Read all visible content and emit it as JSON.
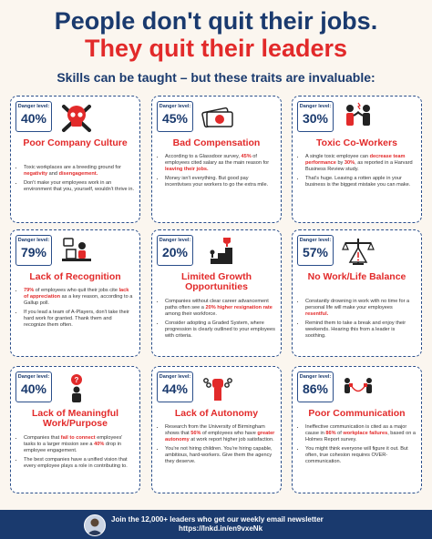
{
  "header": {
    "title_line1": "People don't quit their jobs.",
    "title_line2": "They quit their leaders",
    "subtitle": "Skills can be taught – but these traits are invaluable:"
  },
  "danger_label": "Danger level:",
  "colors": {
    "navy": "#1a3a6e",
    "red": "#e22a2a",
    "background": "#fbf6ef"
  },
  "cards": [
    {
      "danger": "40%",
      "title": "Poor Company Culture",
      "icon": "skull-crossbones-icon",
      "bullets": [
        [
          {
            "t": "Toxic workplaces are a breeding ground for "
          },
          {
            "t": "negativity",
            "h": true
          },
          {
            "t": " and "
          },
          {
            "t": "disengagement.",
            "h": true
          }
        ],
        [
          {
            "t": "Don't make your employees work in an environment that you, yourself, wouldn't thrive in."
          }
        ]
      ]
    },
    {
      "danger": "45%",
      "title": "Bad Compensation",
      "icon": "money-bills-icon",
      "bullets": [
        [
          {
            "t": "According to a Glassdoor survey, "
          },
          {
            "t": "45%",
            "h": true
          },
          {
            "t": " of employees cited salary as the main reason for "
          },
          {
            "t": "leaving their jobs.",
            "h": true
          }
        ],
        [
          {
            "t": "Money isn't everything. But good pay incentivises your workers to go the extra mile."
          }
        ]
      ]
    },
    {
      "danger": "30%",
      "title": "Toxic Co-Workers",
      "icon": "arguing-people-icon",
      "bullets": [
        [
          {
            "t": "A single toxic employee can "
          },
          {
            "t": "decrease team performance",
            "h": true
          },
          {
            "t": " by "
          },
          {
            "t": "30%",
            "h": true
          },
          {
            "t": ", as reported in a Harvard Business Review study."
          }
        ],
        [
          {
            "t": "That's huge. Leaving a rotten apple in your business is the biggest mistake you can make."
          }
        ]
      ]
    },
    {
      "danger": "79%",
      "title": "Lack of Recognition",
      "icon": "worker-at-desk-icon",
      "bullets": [
        [
          {
            "t": "79%",
            "h": true
          },
          {
            "t": " of employees who quit their jobs cite "
          },
          {
            "t": "lack of appreciation",
            "h": true
          },
          {
            "t": " as a key reason, according to a Gallup poll."
          }
        ],
        [
          {
            "t": "If you lead a team of A-Players, don't take their hard work for granted. Thank them and recognize them often."
          }
        ]
      ]
    },
    {
      "danger": "20%",
      "title": "Limited Growth Opportunities",
      "icon": "stairs-trophy-icon",
      "bullets": [
        [
          {
            "t": "Companies without clear career advancement paths often see a "
          },
          {
            "t": "20% higher resignation rate",
            "h": true
          },
          {
            "t": " among their workforce."
          }
        ],
        [
          {
            "t": "Consider adopting a Graded System, where progression is clearly outlined to your employees with criteria."
          }
        ]
      ]
    },
    {
      "danger": "57%",
      "title": "No Work/Life Balance",
      "icon": "scale-warning-icon",
      "bullets": [
        [
          {
            "t": "Constantly drowning in work with no time for a personal life will make your employees "
          },
          {
            "t": "resentful.",
            "h": true
          }
        ],
        [
          {
            "t": "Remind them to take a break and enjoy their weekends. Hearing this from a leader is soothing."
          }
        ]
      ]
    },
    {
      "danger": "40%",
      "title": "Lack of Meaningful Work/Purpose",
      "icon": "thinking-person-icon",
      "bullets": [
        [
          {
            "t": "Companies that "
          },
          {
            "t": "fail to connect",
            "h": true
          },
          {
            "t": " employees' tasks to a larger mission see a "
          },
          {
            "t": "40%",
            "h": true
          },
          {
            "t": " drop in employee engagement."
          }
        ],
        [
          {
            "t": "The best companies have a unified vision that every employee plays a role in contributing to."
          }
        ]
      ]
    },
    {
      "danger": "44%",
      "title": "Lack of Autonomy",
      "icon": "raised-fist-chains-icon",
      "bullets": [
        [
          {
            "t": "Research from the University of Birmingham shows that "
          },
          {
            "t": "56%",
            "h": true
          },
          {
            "t": " of employees who have "
          },
          {
            "t": "greater autonomy",
            "h": true
          },
          {
            "t": " at work report higher job satisfaction."
          }
        ],
        [
          {
            "t": "You're not hiring children. You're hiring capable, ambitious, hard-workers. Give them the agency they deserve."
          }
        ]
      ]
    },
    {
      "danger": "86%",
      "title": "Poor Communication",
      "icon": "tin-can-phone-icon",
      "bullets": [
        [
          {
            "t": "Ineffective communication is cited as a major cause in "
          },
          {
            "t": "86%",
            "h": true
          },
          {
            "t": " of "
          },
          {
            "t": "workplace failures",
            "h": true
          },
          {
            "t": ", based on a Holmes Report survey."
          }
        ],
        [
          {
            "t": "You might think everyone will figure it out. But often, true cohesion requires OVER-communication."
          }
        ]
      ]
    }
  ],
  "footer": {
    "line1": "Join the 12,000+ leaders who get our weekly email newsletter",
    "line2": "https://lnkd.in/en9vxeNk"
  }
}
